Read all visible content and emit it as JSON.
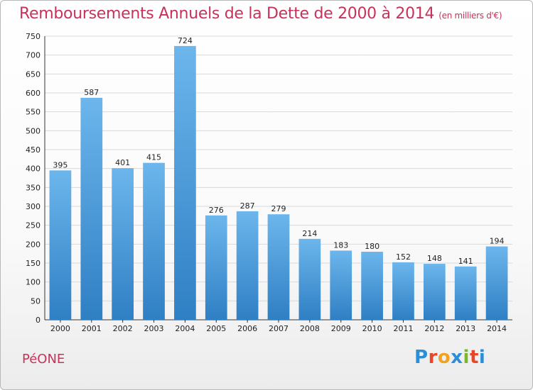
{
  "header": {
    "title": "Remboursements Annuels de la Dette de 2000 à 2014",
    "subtitle": "(en milliers d'€)"
  },
  "footer": {
    "commune": "PéONE",
    "brand": [
      "P",
      "r",
      "o",
      "x",
      "i",
      "t",
      "i"
    ]
  },
  "colors": {
    "title": "#c8325a",
    "bar_top": "#6cb6ec",
    "bar_bottom": "#2f7fc4",
    "grid": "#d9d9d9"
  },
  "chart_data": {
    "type": "bar",
    "title": "Remboursements Annuels de la Dette de 2000 à 2014",
    "subtitle": "(en milliers d'€)",
    "categories": [
      "2000",
      "2001",
      "2002",
      "2003",
      "2004",
      "2005",
      "2006",
      "2007",
      "2008",
      "2009",
      "2010",
      "2011",
      "2012",
      "2013",
      "2014"
    ],
    "values": [
      395,
      587,
      401,
      415,
      724,
      276,
      287,
      279,
      214,
      183,
      180,
      152,
      148,
      141,
      194
    ],
    "ylim": [
      0,
      750
    ],
    "yticks": [
      0,
      50,
      100,
      150,
      200,
      250,
      300,
      350,
      400,
      450,
      500,
      550,
      600,
      650,
      700,
      750
    ],
    "grid": true,
    "data_labels": true
  }
}
